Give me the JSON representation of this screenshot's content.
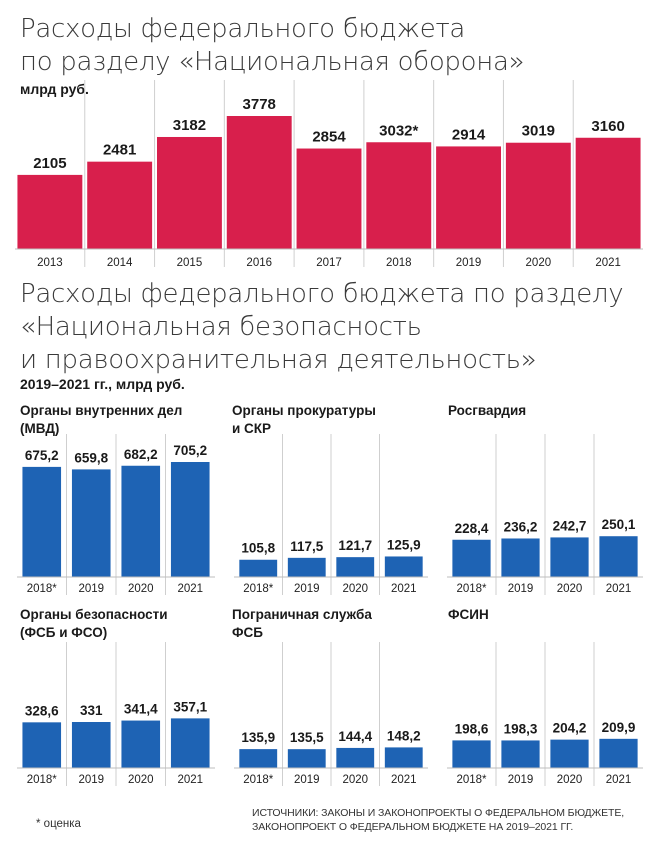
{
  "title1_line1": "Расходы федерального бюджета",
  "title1_line2": "по разделу «Национальная оборона»",
  "subtitle1": "млрд руб.",
  "title2_line1": "Расходы федерального бюджета по разделу",
  "title2_line2": "«Национальная безопасность",
  "title2_line3": "и правоохранительная деятельность»",
  "subtitle2": "2019–2021 гг., млрд руб.",
  "footnote": "* оценка",
  "sources_line1": "ИСТОЧНИКИ: ЗАКОНЫ И ЗАКОНОПРОЕКТЫ О ФЕДЕРАЛЬНОМ БЮДЖЕТЕ,",
  "sources_line2": "ЗАКОНОПРОЕКТ О ФЕДЕРАЛЬНОМ БЮДЖЕТЕ НА 2019–2021 ГГ.",
  "colors": {
    "defense": "#d81f4c",
    "security": "#1e63b4"
  },
  "chart_data": [
    {
      "type": "bar",
      "title": "Расходы федерального бюджета по разделу «Национальная оборона»",
      "ylabel": "млрд руб.",
      "categories": [
        "2013",
        "2014",
        "2015",
        "2016",
        "2017",
        "2018",
        "2019",
        "2020",
        "2021"
      ],
      "values": [
        2105,
        2481,
        3182,
        3778,
        2854,
        3032,
        2914,
        3019,
        3160
      ],
      "value_labels": [
        "2105",
        "2481",
        "3182",
        "3778",
        "2854",
        "3032*",
        "2914",
        "3019",
        "3160"
      ],
      "color": "#d81f4c"
    },
    {
      "type": "bar",
      "title": "Органы внутренних дел (МВД)",
      "categories": [
        "2018*",
        "2019",
        "2020",
        "2021"
      ],
      "values": [
        675.2,
        659.8,
        682.2,
        705.2
      ],
      "value_labels": [
        "675,2",
        "659,8",
        "682,2",
        "705,2"
      ],
      "color": "#1e63b4"
    },
    {
      "type": "bar",
      "title": "Органы прокуратуры и СКР",
      "categories": [
        "2018*",
        "2019",
        "2020",
        "2021"
      ],
      "values": [
        105.8,
        117.5,
        121.7,
        125.9
      ],
      "value_labels": [
        "105,8",
        "117,5",
        "121,7",
        "125,9"
      ],
      "color": "#1e63b4"
    },
    {
      "type": "bar",
      "title": "Росгвардия",
      "categories": [
        "2018*",
        "2019",
        "2020",
        "2021"
      ],
      "values": [
        228.4,
        236.2,
        242.7,
        250.1
      ],
      "value_labels": [
        "228,4",
        "236,2",
        "242,7",
        "250,1"
      ],
      "color": "#1e63b4"
    },
    {
      "type": "bar",
      "title": "Органы безопасности (ФСБ и ФСО)",
      "categories": [
        "2018*",
        "2019",
        "2020",
        "2021"
      ],
      "values": [
        328.6,
        331,
        341.4,
        357.1
      ],
      "value_labels": [
        "328,6",
        "331",
        "341,4",
        "357,1"
      ],
      "color": "#1e63b4"
    },
    {
      "type": "bar",
      "title": "Пограничная служба ФСБ",
      "categories": [
        "2018*",
        "2019",
        "2020",
        "2021"
      ],
      "values": [
        135.9,
        135.5,
        144.4,
        148.2
      ],
      "value_labels": [
        "135,9",
        "135,5",
        "144,4",
        "148,2"
      ],
      "color": "#1e63b4"
    },
    {
      "type": "bar",
      "title": "ФСИН",
      "categories": [
        "2018*",
        "2019",
        "2020",
        "2021"
      ],
      "values": [
        198.6,
        198.3,
        204.2,
        209.9
      ],
      "value_labels": [
        "198,6",
        "198,3",
        "204,2",
        "209,9"
      ],
      "color": "#1e63b4"
    }
  ],
  "panel_labels": [
    [
      "Органы внутренних дел",
      "(МВД)"
    ],
    [
      "Органы прокуратуры",
      "и СКР"
    ],
    [
      "Росгвардия"
    ],
    [
      "Органы безопасности",
      "(ФСБ и ФСО)"
    ],
    [
      "Пограничная служба",
      "ФСБ"
    ],
    [
      "ФСИН"
    ]
  ]
}
